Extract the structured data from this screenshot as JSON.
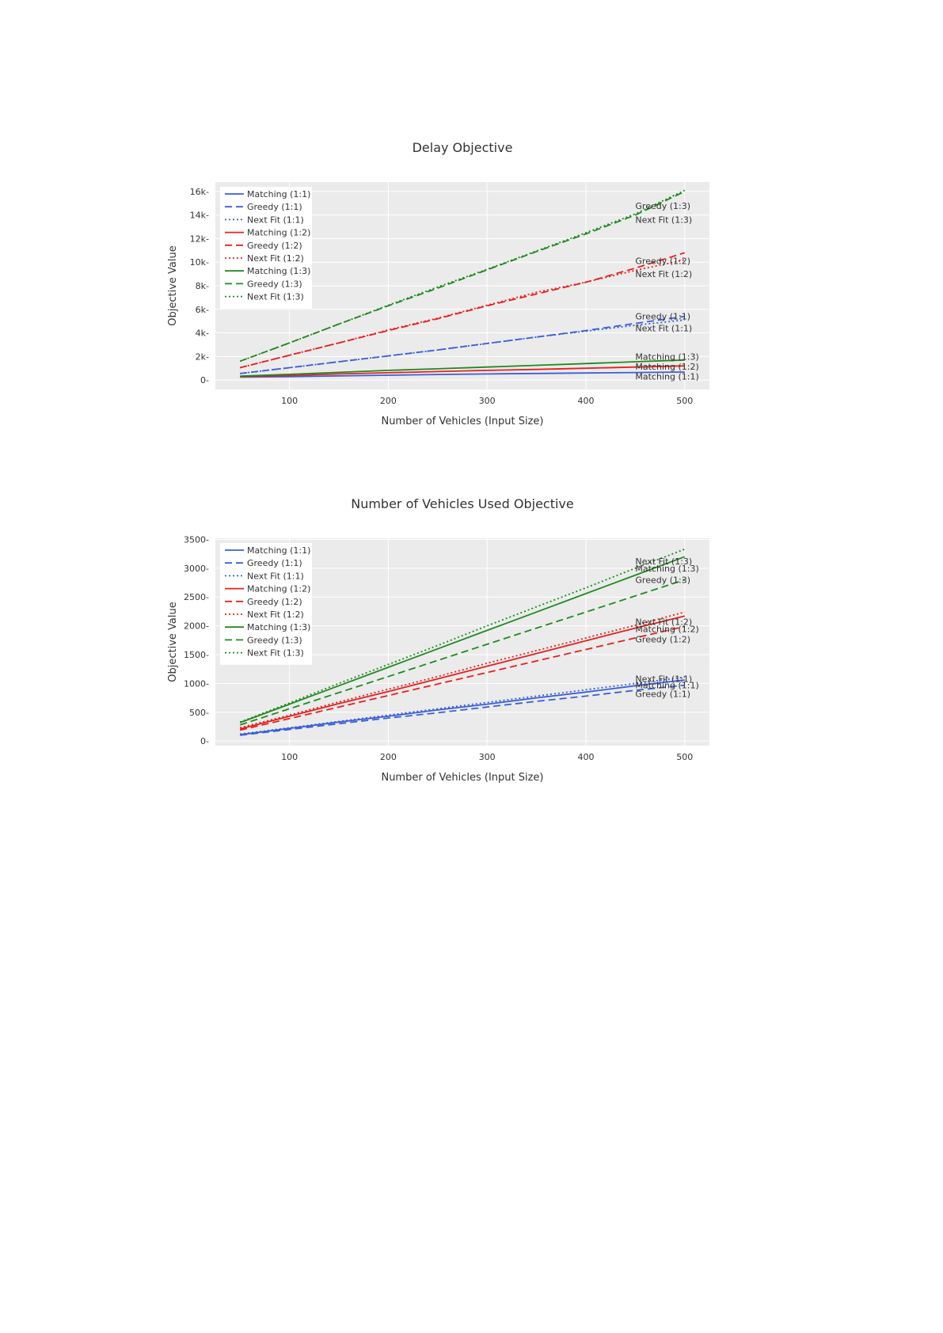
{
  "chart_data": [
    {
      "type": "line",
      "title": "Delay Objective",
      "xlabel": "Number of Vehicles (Input Size)",
      "ylabel": "Objective Value",
      "xlim": [
        25,
        525
      ],
      "ylim": [
        -800,
        16800
      ],
      "xticks": [
        100,
        200,
        300,
        400,
        500
      ],
      "xtick_labels": [
        "100",
        "200",
        "300",
        "400",
        "500"
      ],
      "yticks": [
        0,
        2000,
        4000,
        6000,
        8000,
        10000,
        12000,
        14000,
        16000
      ],
      "ytick_labels": [
        "0",
        "2k",
        "4k",
        "6k",
        "8k",
        "10k",
        "12k",
        "14k",
        "16k"
      ],
      "grid": true,
      "legend_position": "top-left",
      "x": [
        50,
        100,
        150,
        200,
        250,
        300,
        350,
        400,
        450,
        500
      ],
      "series": [
        {
          "name": "Matching (1:1)",
          "color": "#3a5fd8",
          "dash": "solid",
          "values": [
            250,
            290,
            350,
            410,
            470,
            520,
            560,
            600,
            640,
            680
          ]
        },
        {
          "name": "Greedy (1:1)",
          "color": "#3a5fd8",
          "dash": "dash",
          "values": [
            550,
            1050,
            1550,
            2050,
            2550,
            3100,
            3650,
            4200,
            4800,
            5400
          ]
        },
        {
          "name": "Next Fit (1:1)",
          "color": "#3a5fd8",
          "dash": "dot",
          "values": [
            550,
            1050,
            1550,
            2050,
            2550,
            3100,
            3650,
            4150,
            4650,
            5100
          ]
        },
        {
          "name": "Matching (1:2)",
          "color": "#e8201f",
          "dash": "solid",
          "values": [
            280,
            380,
            520,
            620,
            720,
            820,
            900,
            1000,
            1100,
            1200
          ]
        },
        {
          "name": "Greedy (1:2)",
          "color": "#e8201f",
          "dash": "dash",
          "values": [
            1050,
            2100,
            3150,
            4200,
            5200,
            6300,
            7300,
            8300,
            9500,
            10800
          ]
        },
        {
          "name": "Next Fit (1:2)",
          "color": "#e8201f",
          "dash": "dot",
          "values": [
            1050,
            2100,
            3150,
            4250,
            5250,
            6350,
            7450,
            8300,
            9300,
            10200
          ]
        },
        {
          "name": "Matching (1:3)",
          "color": "#1f8a1f",
          "dash": "solid",
          "values": [
            330,
            480,
            650,
            820,
            950,
            1100,
            1250,
            1400,
            1550,
            1700
          ]
        },
        {
          "name": "Greedy (1:3)",
          "color": "#1f8a1f",
          "dash": "dash",
          "values": [
            1600,
            3150,
            4750,
            6300,
            7800,
            9350,
            10900,
            12400,
            14000,
            16000
          ]
        },
        {
          "name": "Next Fit (1:3)",
          "color": "#1f8a1f",
          "dash": "dot",
          "values": [
            1600,
            3150,
            4750,
            6350,
            7900,
            9400,
            10950,
            12500,
            14100,
            16100
          ]
        }
      ],
      "annotations": [
        {
          "text": "Greedy (1:3)",
          "x": 450,
          "y": 14800
        },
        {
          "text": "Next Fit (1:3)",
          "x": 450,
          "y": 13600
        },
        {
          "text": "Greedy (1:2)",
          "x": 450,
          "y": 10100
        },
        {
          "text": "Next Fit (1:2)",
          "x": 450,
          "y": 9000
        },
        {
          "text": "Greedy (1:1)",
          "x": 450,
          "y": 5400
        },
        {
          "text": "Next Fit (1:1)",
          "x": 450,
          "y": 4400
        },
        {
          "text": "Matching (1:3)",
          "x": 450,
          "y": 2000
        },
        {
          "text": "Matching (1:2)",
          "x": 450,
          "y": 1150
        },
        {
          "text": "Matching (1:1)",
          "x": 450,
          "y": 300
        }
      ]
    },
    {
      "type": "line",
      "title": "Number of Vehicles Used Objective",
      "xlabel": "Number of Vehicles (Input Size)",
      "ylabel": "Objective Value",
      "xlim": [
        25,
        525
      ],
      "ylim": [
        -80,
        3520
      ],
      "xticks": [
        100,
        200,
        300,
        400,
        500
      ],
      "xtick_labels": [
        "100",
        "200",
        "300",
        "400",
        "500"
      ],
      "yticks": [
        0,
        500,
        1000,
        1500,
        2000,
        2500,
        3000,
        3500
      ],
      "ytick_labels": [
        "0",
        "500",
        "1000",
        "1500",
        "2000",
        "2500",
        "3000",
        "3500"
      ],
      "grid": true,
      "legend_position": "top-left",
      "x": [
        50,
        100,
        150,
        200,
        250,
        300,
        350,
        400,
        450,
        500
      ],
      "series": [
        {
          "name": "Matching (1:1)",
          "color": "#3a5fd8",
          "dash": "solid",
          "values": [
            110,
            220,
            330,
            430,
            540,
            640,
            750,
            850,
            960,
            1060
          ]
        },
        {
          "name": "Greedy (1:1)",
          "color": "#3a5fd8",
          "dash": "dash",
          "values": [
            100,
            200,
            300,
            400,
            490,
            590,
            690,
            780,
            880,
            970
          ]
        },
        {
          "name": "Next Fit (1:1)",
          "color": "#3a5fd8",
          "dash": "dot",
          "values": [
            120,
            230,
            340,
            450,
            560,
            670,
            780,
            890,
            1000,
            1110
          ]
        },
        {
          "name": "Matching (1:2)",
          "color": "#e8201f",
          "dash": "solid",
          "values": [
            210,
            430,
            650,
            860,
            1080,
            1300,
            1520,
            1740,
            1960,
            2170
          ]
        },
        {
          "name": "Greedy (1:2)",
          "color": "#e8201f",
          "dash": "dash",
          "values": [
            190,
            390,
            590,
            790,
            990,
            1190,
            1390,
            1590,
            1790,
            1990
          ]
        },
        {
          "name": "Next Fit (1:2)",
          "color": "#e8201f",
          "dash": "dot",
          "values": [
            230,
            450,
            680,
            900,
            1120,
            1350,
            1570,
            1790,
            2010,
            2240
          ]
        },
        {
          "name": "Matching (1:3)",
          "color": "#1f8a1f",
          "dash": "solid",
          "values": [
            320,
            640,
            960,
            1280,
            1600,
            1920,
            2240,
            2560,
            2880,
            3200
          ]
        },
        {
          "name": "Greedy (1:3)",
          "color": "#1f8a1f",
          "dash": "dash",
          "values": [
            280,
            560,
            840,
            1120,
            1400,
            1680,
            1960,
            2240,
            2520,
            2800
          ]
        },
        {
          "name": "Next Fit (1:3)",
          "color": "#1f8a1f",
          "dash": "dot",
          "values": [
            330,
            660,
            1000,
            1330,
            1660,
            2000,
            2330,
            2660,
            3000,
            3330
          ]
        }
      ],
      "annotations": [
        {
          "text": "Next Fit (1:3)",
          "x": 450,
          "y": 3120
        },
        {
          "text": "Matching (1:3)",
          "x": 450,
          "y": 3000
        },
        {
          "text": "Greedy (1:3)",
          "x": 450,
          "y": 2800
        },
        {
          "text": "Next Fit (1:2)",
          "x": 450,
          "y": 2070
        },
        {
          "text": "Matching (1:2)",
          "x": 450,
          "y": 1950
        },
        {
          "text": "Greedy (1:2)",
          "x": 450,
          "y": 1770
        },
        {
          "text": "Next Fit (1:1)",
          "x": 450,
          "y": 1080
        },
        {
          "text": "Matching (1:1)",
          "x": 450,
          "y": 970
        },
        {
          "text": "Greedy (1:1)",
          "x": 450,
          "y": 820
        }
      ]
    }
  ]
}
